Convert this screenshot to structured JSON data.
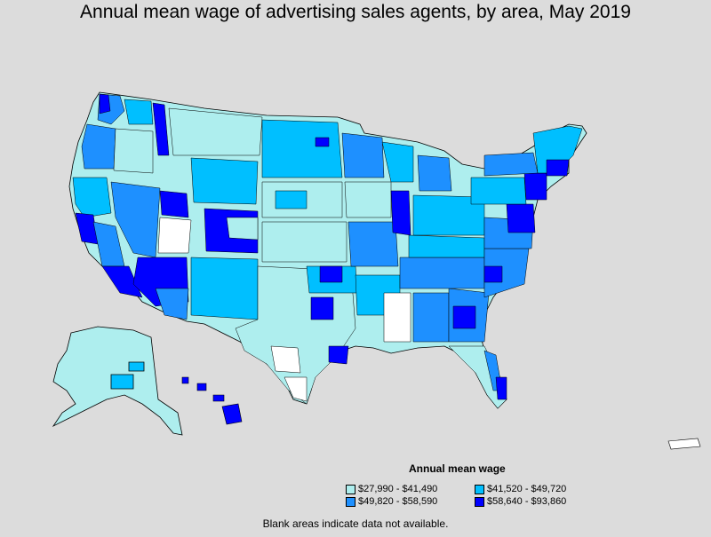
{
  "title": "Annual mean wage of advertising sales agents, by area, May 2019",
  "legend": {
    "title": "Annual mean wage",
    "items": [
      {
        "label": "$27,990 - $41,490",
        "color": "#aeeeee"
      },
      {
        "label": "$41,520 - $49,720",
        "color": "#00bfff"
      },
      {
        "label": "$49,820 - $58,590",
        "color": "#1e90ff"
      },
      {
        "label": "$58,640 - $93,860",
        "color": "#0000ff"
      }
    ]
  },
  "note": "Blank areas indicate data not available.",
  "colors": {
    "background": "#dcdcdc",
    "blank": "#ffffff",
    "border": "#000000"
  }
}
